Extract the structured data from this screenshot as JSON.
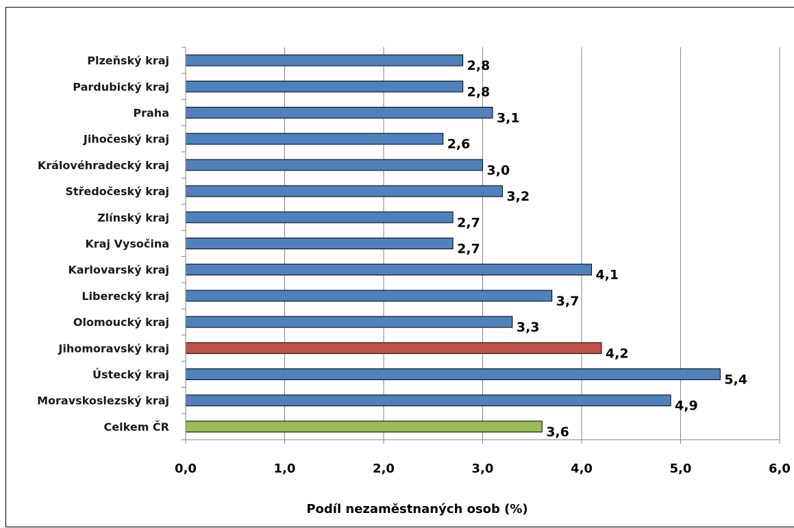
{
  "chart_data": {
    "type": "bar",
    "orientation": "horizontal",
    "title": "",
    "xlabel": "Podíl nezaměstnaných osob (%)",
    "ylabel": "",
    "xlim": [
      0,
      6
    ],
    "x_ticks": [
      "0,0",
      "1,0",
      "2,0",
      "3,0",
      "4,0",
      "5,0",
      "6,0"
    ],
    "grid": "vertical",
    "legend": "none",
    "categories": [
      "Plzeňský kraj",
      "Pardubický kraj",
      "Praha",
      "Jihočeský kraj",
      "Královéhradecký kraj",
      "Středočeský kraj",
      "Zlínský kraj",
      "Kraj Vysočina",
      "Karlovarský kraj",
      "Liberecký kraj",
      "Olomoucký kraj",
      "Jihomoravský kraj",
      "Ústecký kraj",
      "Moravskoslezský kraj",
      "Celkem ČR"
    ],
    "values": [
      2.8,
      2.8,
      3.1,
      2.6,
      3.0,
      3.2,
      2.7,
      2.7,
      4.1,
      3.7,
      3.3,
      4.2,
      5.4,
      4.9,
      3.6
    ],
    "value_labels": [
      "2,8",
      "2,8",
      "3,1",
      "2,6",
      "3,0",
      "3,2",
      "2,7",
      "2,7",
      "4,1",
      "3,7",
      "3,3",
      "4,2",
      "5,4",
      "4,9",
      "3,6"
    ],
    "bar_colors": [
      "#4f81bd",
      "#4f81bd",
      "#4f81bd",
      "#4f81bd",
      "#4f81bd",
      "#4f81bd",
      "#4f81bd",
      "#4f81bd",
      "#4f81bd",
      "#4f81bd",
      "#4f81bd",
      "#c0504d",
      "#4f81bd",
      "#4f81bd",
      "#9bbb59"
    ]
  },
  "colors": {
    "default_bar": "#4f81bd",
    "highlight_bar": "#c0504d",
    "total_bar": "#9bbb59",
    "gridline": "#868686",
    "axis": "#868686"
  }
}
